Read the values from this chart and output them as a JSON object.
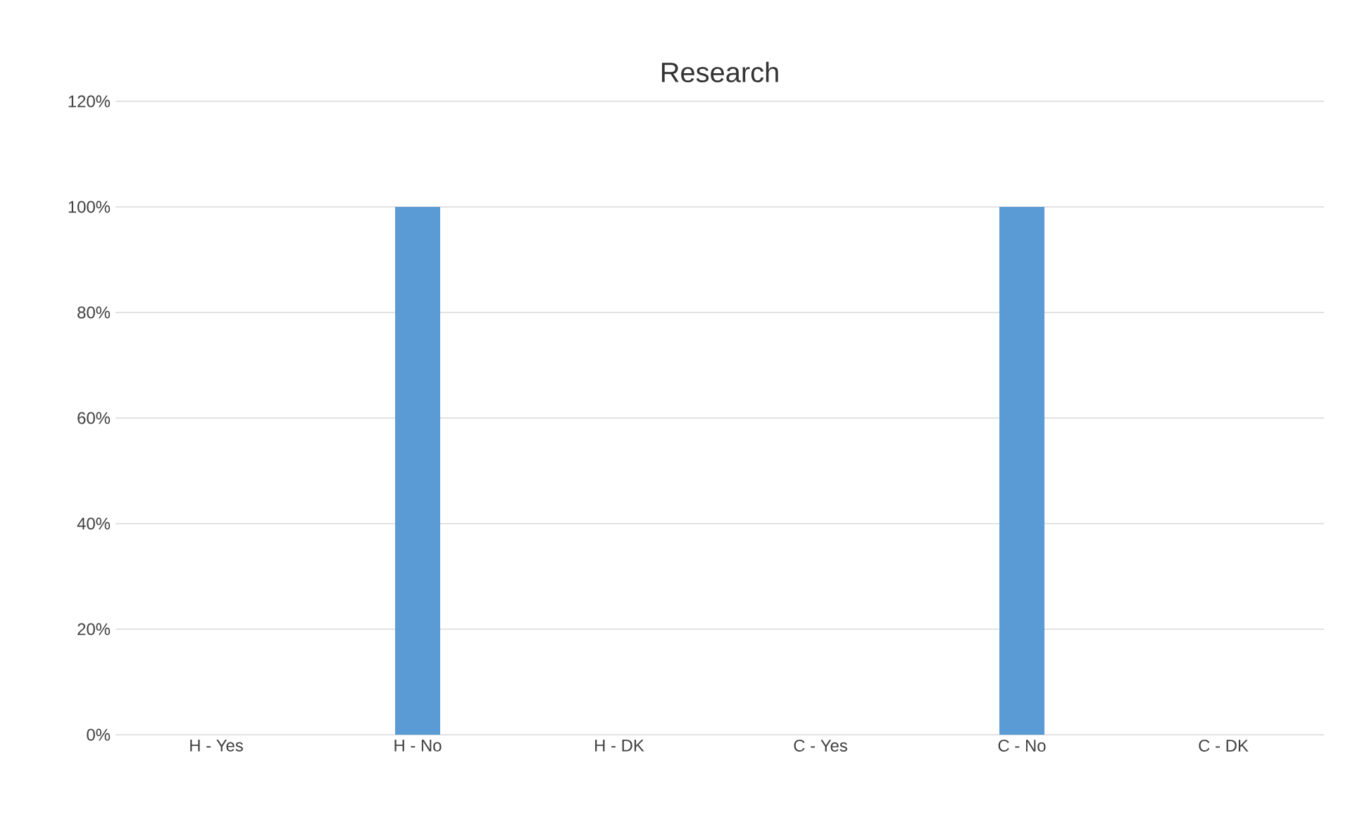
{
  "chart_data": {
    "type": "bar",
    "title": "Research",
    "categories": [
      "H - Yes",
      "H - No",
      "H - DK",
      "C - Yes",
      "C - No",
      "C - DK"
    ],
    "values": [
      0,
      100,
      0,
      0,
      100,
      0
    ],
    "color": "#5b9bd5",
    "ylim": [
      0,
      120
    ],
    "yticks": [
      {
        "value": 0,
        "label": "0%"
      },
      {
        "value": 20,
        "label": "20%"
      },
      {
        "value": 40,
        "label": "40%"
      },
      {
        "value": 60,
        "label": "60%"
      },
      {
        "value": 80,
        "label": "80%"
      },
      {
        "value": 100,
        "label": "100%"
      },
      {
        "value": 120,
        "label": "120%"
      }
    ],
    "grid": "y"
  }
}
